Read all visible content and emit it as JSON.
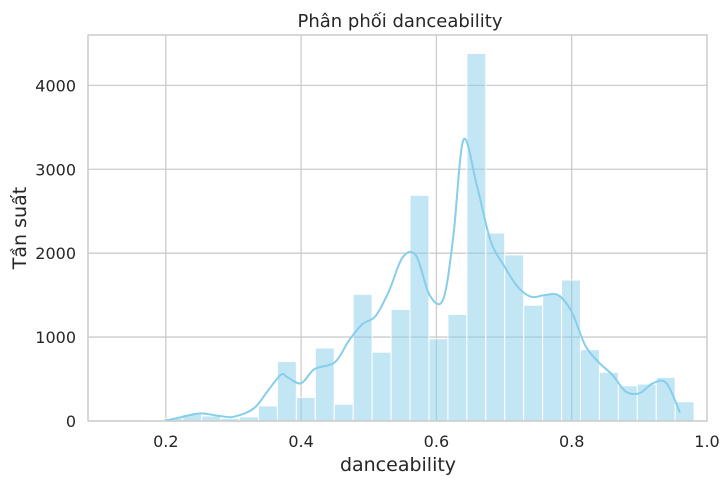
{
  "chart_data": {
    "type": "bar",
    "subtype": "histogram",
    "title": "Phân phối danceability",
    "xlabel": "danceability",
    "ylabel": "Tần suất",
    "xlim": [
      0.085,
      1.0
    ],
    "ylim": [
      0,
      4600
    ],
    "xticks": [
      0.2,
      0.4,
      0.6,
      0.8,
      1.0
    ],
    "xtick_labels": [
      "0.2",
      "0.4",
      "0.6",
      "0.8",
      "1.0"
    ],
    "yticks": [
      0,
      1000,
      2000,
      3000,
      4000
    ],
    "ytick_labels": [
      "0",
      "1000",
      "2000",
      "3000",
      "4000"
    ],
    "grid": true,
    "bar_color": "#87ceeb",
    "kde_color": "#87ceeb",
    "bins": [
      {
        "x0": 0.057,
        "x1": 0.085,
        "count": 0
      },
      {
        "x0": 0.085,
        "x1": 0.113,
        "count": 0
      },
      {
        "x0": 0.113,
        "x1": 0.141,
        "count": 0
      },
      {
        "x0": 0.141,
        "x1": 0.169,
        "count": 0
      },
      {
        "x0": 0.169,
        "x1": 0.197,
        "count": 5
      },
      {
        "x0": 0.197,
        "x1": 0.225,
        "count": 30
      },
      {
        "x0": 0.225,
        "x1": 0.253,
        "count": 80
      },
      {
        "x0": 0.253,
        "x1": 0.281,
        "count": 60
      },
      {
        "x0": 0.281,
        "x1": 0.309,
        "count": 30
      },
      {
        "x0": 0.309,
        "x1": 0.337,
        "count": 50
      },
      {
        "x0": 0.337,
        "x1": 0.365,
        "count": 180
      },
      {
        "x0": 0.365,
        "x1": 0.393,
        "count": 710
      },
      {
        "x0": 0.393,
        "x1": 0.421,
        "count": 280
      },
      {
        "x0": 0.421,
        "x1": 0.449,
        "count": 870
      },
      {
        "x0": 0.449,
        "x1": 0.477,
        "count": 200
      },
      {
        "x0": 0.477,
        "x1": 0.505,
        "count": 1510
      },
      {
        "x0": 0.505,
        "x1": 0.533,
        "count": 820
      },
      {
        "x0": 0.533,
        "x1": 0.561,
        "count": 1330
      },
      {
        "x0": 0.561,
        "x1": 0.589,
        "count": 2690
      },
      {
        "x0": 0.589,
        "x1": 0.617,
        "count": 980
      },
      {
        "x0": 0.617,
        "x1": 0.645,
        "count": 1270
      },
      {
        "x0": 0.645,
        "x1": 0.673,
        "count": 4380
      },
      {
        "x0": 0.673,
        "x1": 0.701,
        "count": 2240
      },
      {
        "x0": 0.701,
        "x1": 0.729,
        "count": 1980
      },
      {
        "x0": 0.729,
        "x1": 0.757,
        "count": 1380
      },
      {
        "x0": 0.757,
        "x1": 0.785,
        "count": 1510
      },
      {
        "x0": 0.785,
        "x1": 0.813,
        "count": 1680
      },
      {
        "x0": 0.813,
        "x1": 0.841,
        "count": 850
      },
      {
        "x0": 0.841,
        "x1": 0.869,
        "count": 580
      },
      {
        "x0": 0.869,
        "x1": 0.897,
        "count": 420
      },
      {
        "x0": 0.897,
        "x1": 0.925,
        "count": 440
      },
      {
        "x0": 0.925,
        "x1": 0.953,
        "count": 520
      },
      {
        "x0": 0.953,
        "x1": 0.981,
        "count": 230
      }
    ],
    "kde": {
      "x": [
        0.2,
        0.22,
        0.25,
        0.28,
        0.3,
        0.33,
        0.35,
        0.37,
        0.38,
        0.4,
        0.42,
        0.45,
        0.47,
        0.49,
        0.51,
        0.53,
        0.55,
        0.57,
        0.59,
        0.61,
        0.625,
        0.64,
        0.66,
        0.68,
        0.7,
        0.72,
        0.74,
        0.76,
        0.78,
        0.8,
        0.82,
        0.84,
        0.86,
        0.88,
        0.9,
        0.92,
        0.94,
        0.96
      ],
      "y": [
        5,
        40,
        90,
        60,
        50,
        150,
        350,
        550,
        520,
        450,
        620,
        700,
        950,
        1150,
        1250,
        1550,
        1950,
        1970,
        1500,
        1450,
        2200,
        3350,
        2800,
        2150,
        1850,
        1600,
        1480,
        1500,
        1500,
        1300,
        900,
        700,
        550,
        350,
        330,
        450,
        450,
        100
      ]
    }
  }
}
